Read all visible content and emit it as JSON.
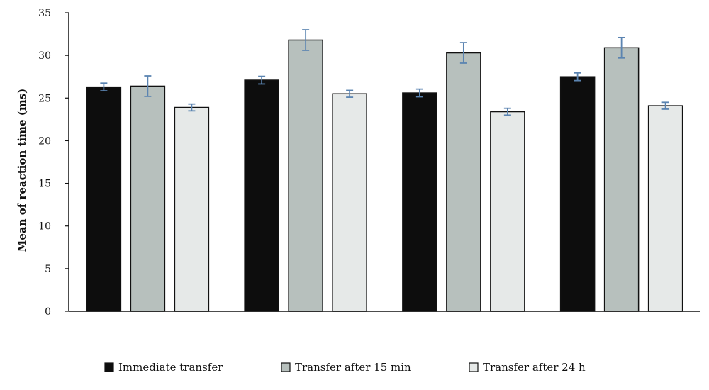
{
  "chart_data": {
    "type": "bar",
    "title": "",
    "xlabel": "",
    "ylabel": "Mean of reaction time (ms)",
    "ylim": [
      0,
      35
    ],
    "yticks": [
      0,
      5,
      10,
      15,
      20,
      25,
      30,
      35
    ],
    "grid": false,
    "legend_position": "bottom",
    "categories": [
      "",
      "",
      "",
      ""
    ],
    "series": [
      {
        "name": "Immediate transfer",
        "color": "#0d0d0d",
        "values": [
          26.3,
          27.1,
          25.6,
          27.5
        ],
        "errors": [
          0.45,
          0.45,
          0.45,
          0.45
        ]
      },
      {
        "name": "Transfer after 15 min",
        "color": "#b7c0bd",
        "values": [
          26.4,
          31.8,
          30.3,
          30.9
        ],
        "errors": [
          1.2,
          1.2,
          1.2,
          1.2
        ]
      },
      {
        "name": "Transfer after 24 h",
        "color": "#e6e9e8",
        "values": [
          23.9,
          25.5,
          23.4,
          24.1
        ],
        "errors": [
          0.4,
          0.4,
          0.4,
          0.4
        ]
      }
    ],
    "error_bar_color": "#5b84b1"
  }
}
